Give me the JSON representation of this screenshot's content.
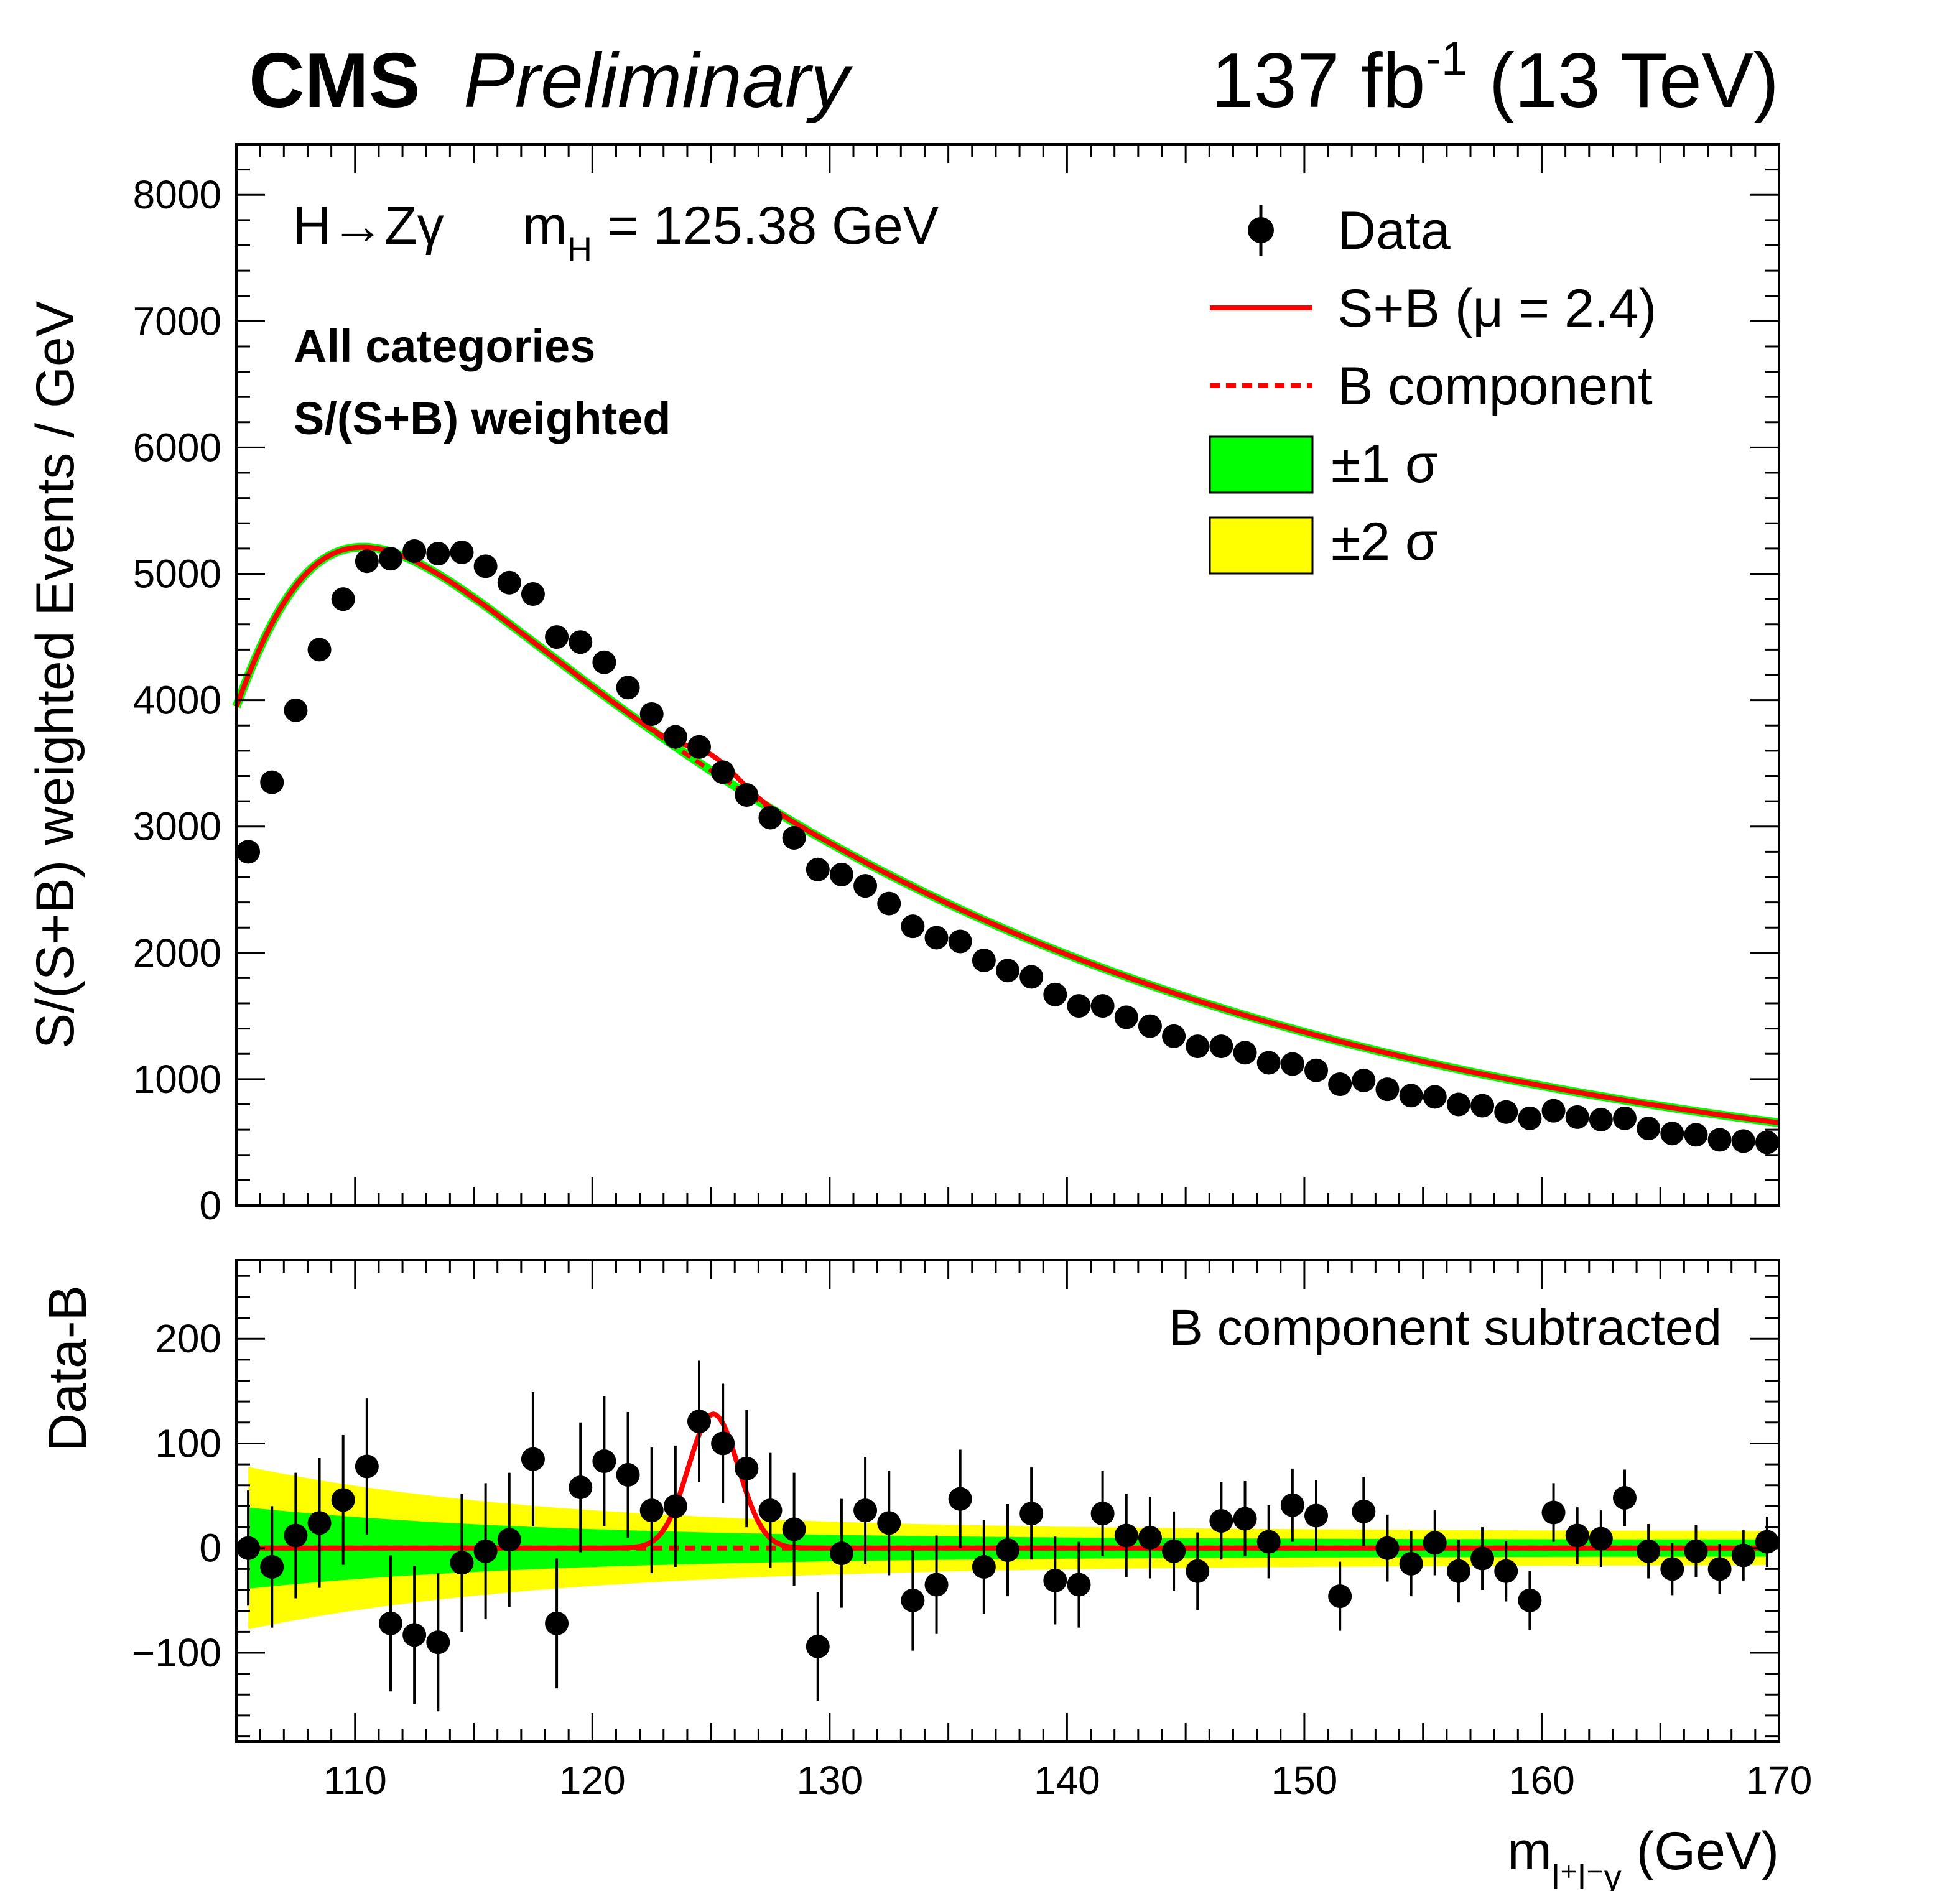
{
  "header": {
    "experiment": "CMS",
    "status": "Preliminary",
    "lumi": "137 fb",
    "lumi_exp": "-1",
    "energy": " (13 TeV)"
  },
  "annotations": {
    "process": "H→Zγ",
    "mass_label": "m",
    "mass_sub": "H",
    "mass_value": " = 125.38 GeV",
    "categories": "All categories",
    "weighting": "S/(S+B) weighted",
    "lower_note": "B component subtracted"
  },
  "legend": {
    "data": "Data",
    "sb": "S+B (μ = 2.4)",
    "b": "B component",
    "one_sigma": "±1 σ",
    "two_sigma": "±2 σ"
  },
  "colors": {
    "fit": "#ff0000",
    "one_sigma": "#00ff00",
    "two_sigma": "#ffff00",
    "points": "#000000"
  },
  "chart_data": [
    {
      "type": "scatter",
      "panel": "upper",
      "ylabel": "S/(S+B) weighted Events / GeV",
      "xlim": [
        105,
        170
      ],
      "ylim": [
        0,
        8400
      ],
      "yticks": [
        0,
        1000,
        2000,
        3000,
        4000,
        5000,
        6000,
        7000,
        8000
      ],
      "x": [
        105.5,
        106.5,
        107.5,
        108.5,
        109.5,
        110.5,
        111.5,
        112.5,
        113.5,
        114.5,
        115.5,
        116.5,
        117.5,
        118.5,
        119.5,
        120.5,
        121.5,
        122.5,
        123.5,
        124.5,
        125.5,
        126.5,
        127.5,
        128.5,
        129.5,
        130.5,
        131.5,
        132.5,
        133.5,
        134.5,
        135.5,
        136.5,
        137.5,
        138.5,
        139.5,
        140.5,
        141.5,
        142.5,
        143.5,
        144.5,
        145.5,
        146.5,
        147.5,
        148.5,
        149.5,
        150.5,
        151.5,
        152.5,
        153.5,
        154.5,
        155.5,
        156.5,
        157.5,
        158.5,
        159.5,
        160.5,
        161.5,
        162.5,
        163.5,
        164.5,
        165.5,
        166.5,
        167.5,
        168.5,
        169.5
      ],
      "series": [
        {
          "name": "Data",
          "y": [
            2800,
            3350,
            3920,
            4400,
            4800,
            5100,
            5120,
            5180,
            5160,
            5170,
            5060,
            4930,
            4840,
            4500,
            4460,
            4300,
            4100,
            3890,
            3710,
            3630,
            3430,
            3250,
            3070,
            2910,
            2660,
            2620,
            2530,
            2390,
            2210,
            2120,
            2090,
            1940,
            1860,
            1810,
            1670,
            1580,
            1580,
            1490,
            1420,
            1340,
            1260,
            1260,
            1210,
            1130,
            1120,
            1070,
            960,
            990,
            920,
            870,
            860,
            800,
            790,
            740,
            690,
            750,
            700,
            680,
            690,
            610,
            570,
            560,
            520,
            510,
            500
          ],
          "yerr": [
            45,
            50,
            55,
            58,
            60,
            62,
            62,
            63,
            63,
            63,
            62,
            61,
            60,
            58,
            58,
            57,
            55,
            54,
            53,
            52,
            51,
            50,
            48,
            47,
            45,
            45,
            44,
            43,
            41,
            40,
            40,
            39,
            38,
            37,
            36,
            35,
            35,
            34,
            33,
            32,
            31,
            31,
            31,
            30,
            30,
            29,
            28,
            28,
            27,
            27,
            26,
            25,
            25,
            24,
            23,
            24,
            23,
            23,
            23,
            22,
            21,
            21,
            20,
            20,
            20
          ]
        }
      ],
      "legend_placement": "top-right"
    },
    {
      "type": "scatter",
      "panel": "lower",
      "xlabel": "m (GeV)",
      "xlabel_sub": "l⁺l⁻γ",
      "ylabel": "Data-B",
      "xlim": [
        105,
        170
      ],
      "ylim": [
        -185,
        275
      ],
      "yticks": [
        -100,
        0,
        100,
        200
      ],
      "xticks": [
        110,
        120,
        130,
        140,
        150,
        160,
        170
      ],
      "x": [
        105.5,
        106.5,
        107.5,
        108.5,
        109.5,
        110.5,
        111.5,
        112.5,
        113.5,
        114.5,
        115.5,
        116.5,
        117.5,
        118.5,
        119.5,
        120.5,
        121.5,
        122.5,
        123.5,
        124.5,
        125.5,
        126.5,
        127.5,
        128.5,
        129.5,
        130.5,
        131.5,
        132.5,
        133.5,
        134.5,
        135.5,
        136.5,
        137.5,
        138.5,
        139.5,
        140.5,
        141.5,
        142.5,
        143.5,
        144.5,
        145.5,
        146.5,
        147.5,
        148.5,
        149.5,
        150.5,
        151.5,
        152.5,
        153.5,
        154.5,
        155.5,
        156.5,
        157.5,
        158.5,
        159.5,
        160.5,
        161.5,
        162.5,
        163.5,
        164.5,
        165.5,
        166.5,
        167.5,
        168.5,
        169.5
      ],
      "series": [
        {
          "name": "Data",
          "y": [
            0,
            -18,
            12,
            24,
            46,
            78,
            -72,
            -83,
            -90,
            -14,
            -3,
            8,
            85,
            -72,
            58,
            83,
            70,
            36,
            40,
            121,
            100,
            76,
            36,
            18,
            -94,
            -5,
            36,
            24,
            -50,
            -35,
            47,
            -18,
            -2,
            33,
            -31,
            -35,
            33,
            12,
            10,
            -3,
            -22,
            26,
            28,
            6,
            41,
            31,
            -46,
            35,
            0,
            -15,
            5,
            -22,
            -10,
            -22,
            -50,
            34,
            12,
            9,
            48,
            -3,
            -20,
            -3,
            -20,
            -7,
            6
          ],
          "yerr": [
            55,
            58,
            60,
            62,
            62,
            65,
            65,
            66,
            66,
            66,
            65,
            64,
            64,
            62,
            62,
            62,
            60,
            60,
            58,
            58,
            57,
            56,
            55,
            54,
            52,
            52,
            51,
            50,
            48,
            47,
            47,
            45,
            44,
            44,
            42,
            41,
            41,
            40,
            39,
            38,
            37,
            37,
            36,
            35,
            35,
            34,
            33,
            33,
            32,
            31,
            31,
            30,
            30,
            29,
            28,
            28,
            27,
            27,
            27,
            26,
            25,
            25,
            24,
            24,
            24
          ]
        }
      ]
    }
  ]
}
